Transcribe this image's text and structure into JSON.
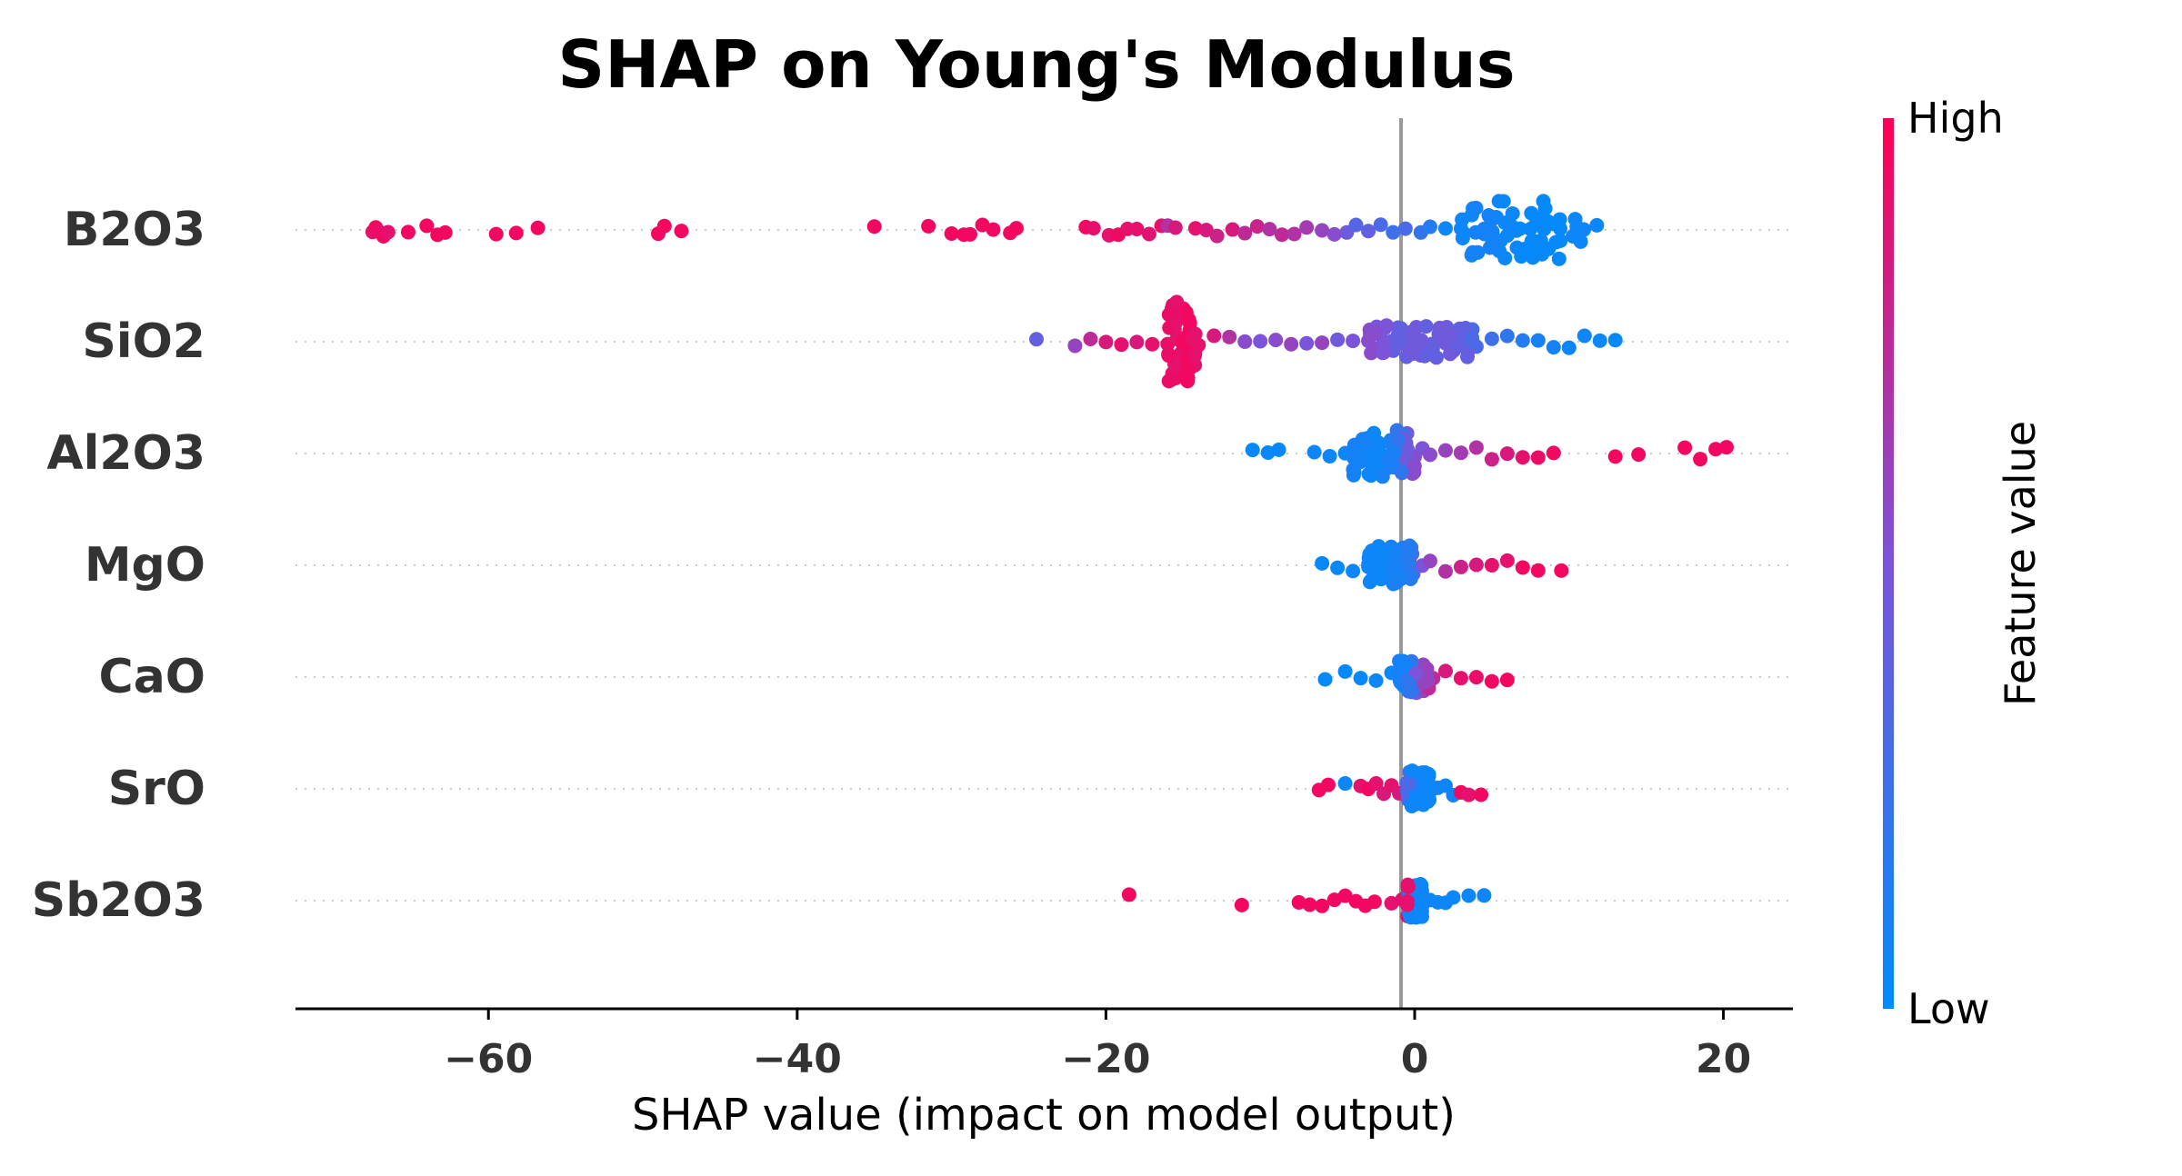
{
  "chart_data": {
    "type": "scatter",
    "subtype": "shap-beeswarm",
    "title": "SHAP on Young's Modulus",
    "xlabel": "SHAP value (impact on model output)",
    "xlim": [
      -72.5,
      24.5
    ],
    "xticks": [
      -60,
      -40,
      -20,
      0,
      20
    ],
    "xtick_labels": [
      "−60",
      "−40",
      "−20",
      "0",
      "20"
    ],
    "features": [
      "B2O3",
      "SiO2",
      "Al2O3",
      "MgO",
      "CaO",
      "SrO",
      "Sb2O3"
    ],
    "grid": false,
    "zero_line": true,
    "colorbar": {
      "label": "Feature value",
      "high_label": "High",
      "low_label": "Low",
      "low_color": "#008bfb",
      "high_color": "#ff0052"
    },
    "series": [
      {
        "feature": "B2O3",
        "points": [
          [
            -67.5,
            0.9
          ],
          [
            -67.3,
            0.95
          ],
          [
            -67.1,
            0.92
          ],
          [
            -66.8,
            0.95
          ],
          [
            -66.5,
            0.9
          ],
          [
            -65.2,
            0.95
          ],
          [
            -64.0,
            0.95
          ],
          [
            -63.3,
            0.95
          ],
          [
            -62.8,
            0.95
          ],
          [
            -59.5,
            0.95
          ],
          [
            -58.2,
            0.95
          ],
          [
            -56.8,
            0.95
          ],
          [
            -49.0,
            0.95
          ],
          [
            -48.6,
            0.95
          ],
          [
            -47.5,
            0.95
          ],
          [
            -35.0,
            0.95
          ],
          [
            -31.5,
            0.95
          ],
          [
            -30.0,
            0.95
          ],
          [
            -29.2,
            0.95
          ],
          [
            -28.8,
            0.95
          ],
          [
            -28.0,
            0.95
          ],
          [
            -27.3,
            0.95
          ],
          [
            -26.2,
            0.95
          ],
          [
            -25.8,
            0.95
          ],
          [
            -21.3,
            0.95
          ],
          [
            -20.8,
            0.9
          ],
          [
            -19.8,
            0.9
          ],
          [
            -19.2,
            0.95
          ],
          [
            -18.6,
            0.9
          ],
          [
            -18.0,
            0.9
          ],
          [
            -17.2,
            0.88
          ],
          [
            -16.4,
            0.9
          ],
          [
            -16.0,
            0.7
          ],
          [
            -15.5,
            0.85
          ],
          [
            -14.2,
            0.9
          ],
          [
            -13.5,
            0.85
          ],
          [
            -12.8,
            0.8
          ],
          [
            -11.8,
            0.85
          ],
          [
            -11.0,
            0.75
          ],
          [
            -10.2,
            0.8
          ],
          [
            -9.4,
            0.7
          ],
          [
            -8.6,
            0.75
          ],
          [
            -7.8,
            0.7
          ],
          [
            -7.0,
            0.65
          ],
          [
            -6.0,
            0.6
          ],
          [
            -5.2,
            0.55
          ],
          [
            -4.4,
            0.45
          ],
          [
            -3.8,
            0.35
          ],
          [
            -3.0,
            0.4
          ],
          [
            -2.2,
            0.3
          ],
          [
            -1.4,
            0.25
          ],
          [
            -0.6,
            0.3
          ],
          [
            0.4,
            0.2
          ],
          [
            1.0,
            0.15
          ],
          [
            2.0,
            0.05
          ],
          [
            3.0,
            0.05
          ],
          [
            4.5,
            0.08
          ],
          [
            6.0,
            0.05
          ],
          [
            7.5,
            0.03
          ],
          [
            9.0,
            0.02
          ],
          [
            10.5,
            0.05
          ],
          [
            11.8,
            0.05
          ]
        ]
      },
      {
        "feature": "SiO2",
        "points": [
          [
            -24.5,
            0.4
          ],
          [
            -22.0,
            0.6
          ],
          [
            -21.0,
            0.75
          ],
          [
            -20.0,
            0.85
          ],
          [
            -19.0,
            0.9
          ],
          [
            -18.0,
            0.85
          ],
          [
            -17.0,
            0.9
          ],
          [
            -16.0,
            0.92
          ],
          [
            -15.4,
            0.9
          ],
          [
            -14.8,
            0.95
          ],
          [
            -14.0,
            0.9
          ],
          [
            -13.0,
            0.85
          ],
          [
            -12.0,
            0.7
          ],
          [
            -11.0,
            0.55
          ],
          [
            -10.0,
            0.5
          ],
          [
            -9.0,
            0.55
          ],
          [
            -8.0,
            0.6
          ],
          [
            -7.0,
            0.5
          ],
          [
            -6.0,
            0.6
          ],
          [
            -5.0,
            0.45
          ],
          [
            -4.0,
            0.5
          ],
          [
            -3.0,
            0.55
          ],
          [
            -2.0,
            0.5
          ],
          [
            -1.0,
            0.4
          ],
          [
            0.0,
            0.45
          ],
          [
            1.0,
            0.4
          ],
          [
            2.0,
            0.45
          ],
          [
            3.0,
            0.4
          ],
          [
            4.0,
            0.3
          ],
          [
            5.0,
            0.25
          ],
          [
            6.0,
            0.2
          ],
          [
            7.0,
            0.15
          ],
          [
            8.0,
            0.1
          ],
          [
            9.0,
            0.08
          ],
          [
            10.0,
            0.05
          ],
          [
            11.0,
            0.05
          ],
          [
            12.0,
            0.04
          ],
          [
            13.0,
            0.03
          ]
        ]
      },
      {
        "feature": "Al2O3",
        "points": [
          [
            -10.5,
            0.02
          ],
          [
            -9.5,
            0.03
          ],
          [
            -8.8,
            0.03
          ],
          [
            -6.5,
            0.05
          ],
          [
            -5.5,
            0.05
          ],
          [
            -4.5,
            0.05
          ],
          [
            -3.5,
            0.08
          ],
          [
            -2.5,
            0.05
          ],
          [
            -2.0,
            0.1
          ],
          [
            -1.5,
            0.1
          ],
          [
            -1.0,
            0.2
          ],
          [
            -0.5,
            0.45
          ],
          [
            0.0,
            0.55
          ],
          [
            0.5,
            0.5
          ],
          [
            1.0,
            0.55
          ],
          [
            2.0,
            0.6
          ],
          [
            3.0,
            0.65
          ],
          [
            4.0,
            0.7
          ],
          [
            5.0,
            0.8
          ],
          [
            6.0,
            0.85
          ],
          [
            7.0,
            0.9
          ],
          [
            8.0,
            0.92
          ],
          [
            9.0,
            0.95
          ],
          [
            13.0,
            0.95
          ],
          [
            14.5,
            0.95
          ],
          [
            17.5,
            0.95
          ],
          [
            18.5,
            0.95
          ],
          [
            19.5,
            0.95
          ],
          [
            20.2,
            0.95
          ]
        ]
      },
      {
        "feature": "MgO",
        "points": [
          [
            -6.0,
            0.02
          ],
          [
            -5.0,
            0.03
          ],
          [
            -4.0,
            0.05
          ],
          [
            -3.0,
            0.05
          ],
          [
            -2.0,
            0.05
          ],
          [
            -1.5,
            0.08
          ],
          [
            -1.0,
            0.1
          ],
          [
            -0.5,
            0.15
          ],
          [
            0.0,
            0.3
          ],
          [
            0.5,
            0.5
          ],
          [
            1.0,
            0.6
          ],
          [
            2.0,
            0.7
          ],
          [
            3.0,
            0.8
          ],
          [
            4.0,
            0.85
          ],
          [
            5.0,
            0.9
          ],
          [
            6.0,
            0.9
          ],
          [
            7.0,
            0.95
          ],
          [
            8.0,
            0.95
          ],
          [
            9.5,
            0.95
          ]
        ]
      },
      {
        "feature": "CaO",
        "points": [
          [
            -5.8,
            0.02
          ],
          [
            -4.5,
            0.03
          ],
          [
            -3.5,
            0.03
          ],
          [
            -2.5,
            0.05
          ],
          [
            -1.5,
            0.05
          ],
          [
            -0.8,
            0.08
          ],
          [
            -0.2,
            0.2
          ],
          [
            0.2,
            0.5
          ],
          [
            0.6,
            0.6
          ],
          [
            1.2,
            0.75
          ],
          [
            2.0,
            0.85
          ],
          [
            3.0,
            0.9
          ],
          [
            4.0,
            0.92
          ],
          [
            5.0,
            0.95
          ],
          [
            6.0,
            0.95
          ]
        ]
      },
      {
        "feature": "SrO",
        "points": [
          [
            -6.2,
            0.95
          ],
          [
            -5.6,
            0.95
          ],
          [
            -4.5,
            0.05
          ],
          [
            -3.5,
            0.9
          ],
          [
            -3.0,
            0.95
          ],
          [
            -2.5,
            0.9
          ],
          [
            -2.0,
            0.85
          ],
          [
            -1.5,
            0.9
          ],
          [
            -1.0,
            0.85
          ],
          [
            -0.5,
            0.3
          ],
          [
            0.0,
            0.05
          ],
          [
            0.5,
            0.05
          ],
          [
            1.0,
            0.05
          ],
          [
            1.5,
            0.1
          ],
          [
            2.0,
            0.05
          ],
          [
            2.5,
            0.08
          ],
          [
            3.0,
            0.95
          ],
          [
            3.5,
            0.9
          ],
          [
            4.3,
            0.95
          ]
        ]
      },
      {
        "feature": "Sb2O3",
        "points": [
          [
            -18.5,
            0.95
          ],
          [
            -11.2,
            0.95
          ],
          [
            -7.5,
            0.95
          ],
          [
            -6.8,
            0.95
          ],
          [
            -6.0,
            0.95
          ],
          [
            -5.2,
            0.95
          ],
          [
            -4.5,
            0.95
          ],
          [
            -3.8,
            0.95
          ],
          [
            -3.2,
            0.95
          ],
          [
            -2.6,
            0.95
          ],
          [
            -1.5,
            0.9
          ],
          [
            -0.8,
            0.9
          ],
          [
            0.0,
            0.05
          ],
          [
            0.5,
            0.05
          ],
          [
            1.0,
            0.05
          ],
          [
            1.5,
            0.05
          ],
          [
            2.0,
            0.05
          ],
          [
            2.5,
            0.05
          ],
          [
            3.5,
            0.05
          ],
          [
            4.5,
            0.05
          ]
        ]
      }
    ]
  }
}
